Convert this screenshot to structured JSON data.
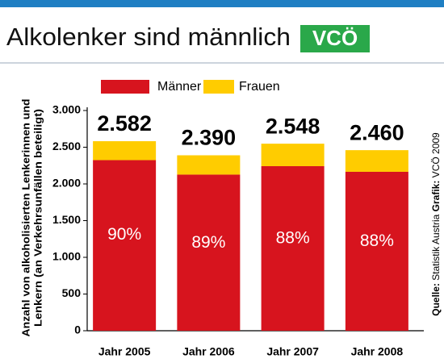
{
  "chart_data": {
    "type": "stacked_bar",
    "title": "Alkolenker sind männlich",
    "logo": "VCÖ",
    "ylabel": [
      "Anzahl von alkoholisierten Lenkerinnen und",
      "Lenkern (an Verkehrsunfällen beteiligt)"
    ],
    "categories": [
      "Jahr 2005",
      "Jahr 2006",
      "Jahr 2007",
      "Jahr 2008"
    ],
    "series": [
      {
        "name": "Männer",
        "color": "#d7141e",
        "values": [
          2324,
          2127,
          2242,
          2165
        ]
      },
      {
        "name": "Frauen",
        "color": "#ffcc00",
        "values": [
          258,
          263,
          306,
          295
        ]
      }
    ],
    "totals": [
      {
        "value": 2582,
        "label": "2.582"
      },
      {
        "value": 2390,
        "label": "2.390"
      },
      {
        "value": 2548,
        "label": "2.548"
      },
      {
        "value": 2460,
        "label": "2.460"
      }
    ],
    "shares": [
      {
        "value": 90,
        "label": "90%"
      },
      {
        "value": 89,
        "label": "89%"
      },
      {
        "value": 88,
        "label": "88%"
      },
      {
        "value": 88,
        "label": "88%"
      }
    ],
    "ylim": [
      0,
      3000
    ],
    "yticks": [
      0,
      500,
      {
        "value": 1000,
        "label": "1.000"
      },
      {
        "value": 1500,
        "label": "1.500"
      },
      {
        "value": 2000,
        "label": "2.000"
      },
      {
        "value": 2500,
        "label": "2.500"
      },
      {
        "value": 3000,
        "label": "3.000"
      }
    ],
    "source_label": "Quelle:",
    "source": "Statistik Austria",
    "credit_label": "Grafik:",
    "credit": "VCÖ 2009"
  }
}
